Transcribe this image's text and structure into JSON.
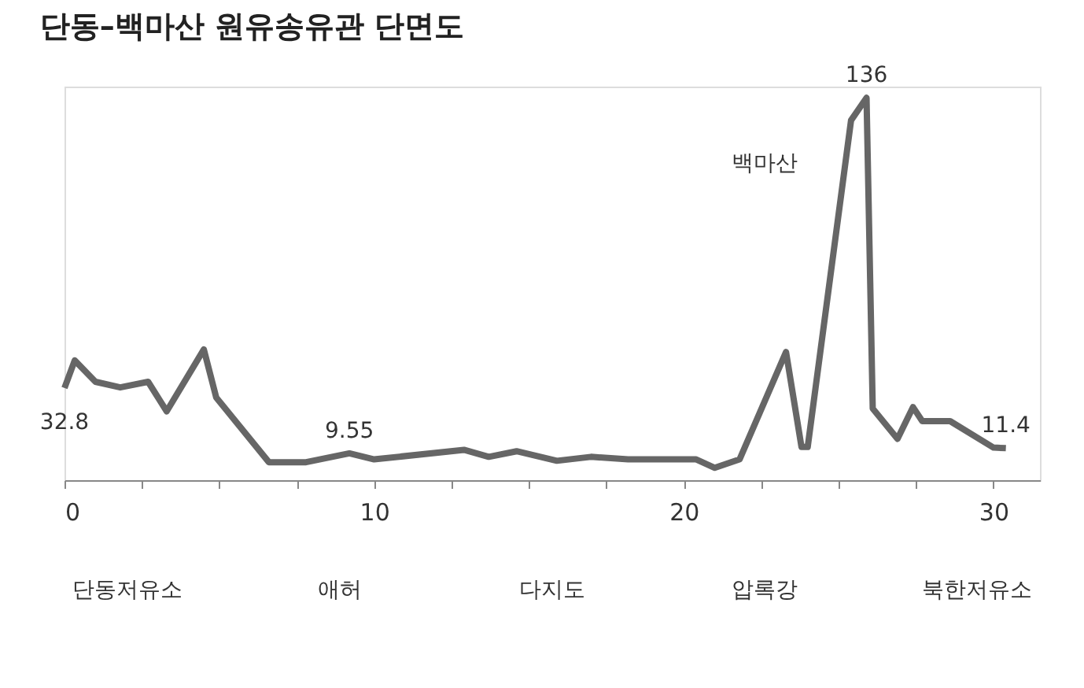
{
  "chart_data": {
    "type": "line",
    "title": "단동–백마산 원유송유관 단면도",
    "x": [
      0,
      0.33,
      1.0,
      1.8,
      2.7,
      3.3,
      4.5,
      4.9,
      6.6,
      7.8,
      9.2,
      10.0,
      12.9,
      13.7,
      14.6,
      15.9,
      17.0,
      18.2,
      20.4,
      21.0,
      21.8,
      23.3,
      23.8,
      24.0,
      25.4,
      25.9,
      26.1,
      26.9,
      27.4,
      27.7,
      28.6,
      30.0,
      30.4
    ],
    "series": [
      {
        "color": "#666666",
        "values": [
          32.8,
          42.6,
          35,
          33,
          35,
          24.5,
          46.5,
          29.4,
          6.4,
          6.4,
          9.55,
          7.4,
          10.8,
          8.3,
          10.3,
          6.9,
          8.3,
          7.4,
          7.4,
          4.4,
          7.4,
          45.6,
          11.8,
          11.8,
          128,
          136,
          25.5,
          14.7,
          26,
          21,
          21,
          11.6,
          11.4
        ],
        "value_labels": [
          "32.8",
          null,
          null,
          null,
          null,
          null,
          null,
          null,
          null,
          null,
          "9.55",
          null,
          null,
          null,
          null,
          null,
          null,
          null,
          null,
          null,
          null,
          null,
          null,
          null,
          null,
          "136",
          null,
          null,
          null,
          null,
          null,
          null,
          "11.4"
        ]
      }
    ],
    "xlim": [
      0,
      31.5
    ],
    "ylim": [
      0,
      140
    ],
    "xticks": [
      0,
      {
        "value": 2.5,
        "label": null
      },
      {
        "value": 5,
        "label": null
      },
      {
        "value": 7.5,
        "label": null
      },
      10,
      {
        "value": 12.5,
        "label": null
      },
      {
        "value": 15,
        "label": null
      },
      {
        "value": 17.5,
        "label": null
      },
      20,
      {
        "value": 22.5,
        "label": null
      },
      {
        "value": 25,
        "label": null
      },
      {
        "value": 27.5,
        "label": null
      },
      30
    ],
    "tick_labels": "x",
    "grid": false,
    "marker": "none",
    "line_style": "solid",
    "annotations": [
      "백마산",
      "단동저유소",
      "애허",
      "다지도",
      "압록강",
      "북한저유소"
    ]
  }
}
